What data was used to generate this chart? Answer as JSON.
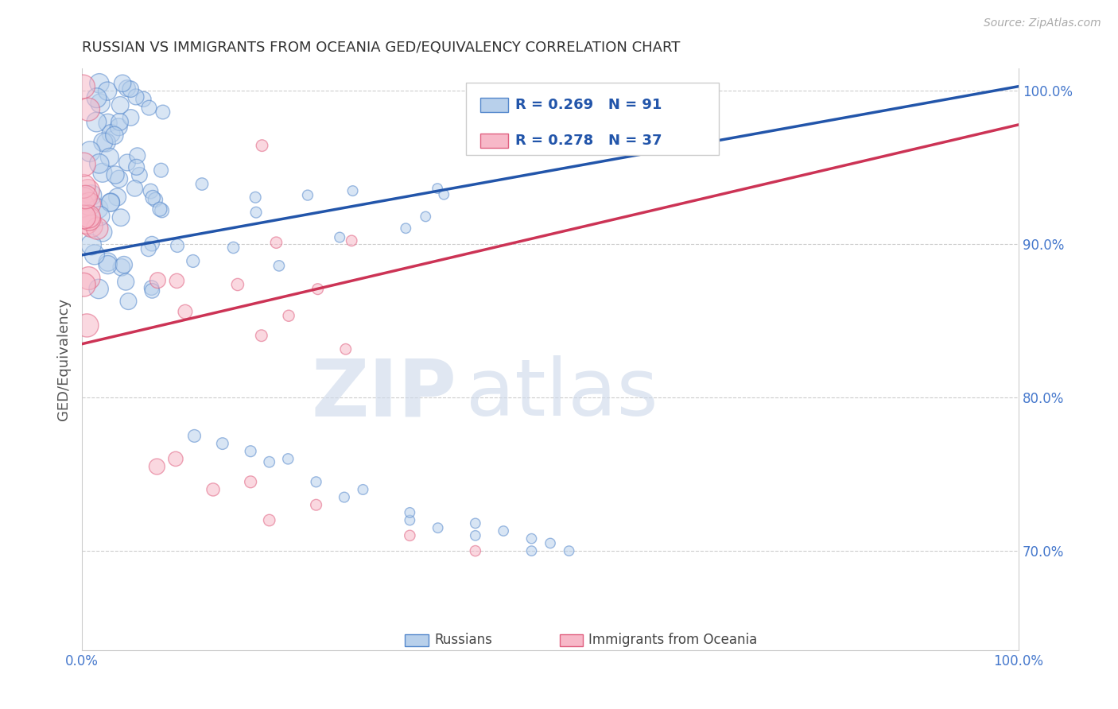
{
  "title": "RUSSIAN VS IMMIGRANTS FROM OCEANIA GED/EQUIVALENCY CORRELATION CHART",
  "source": "Source: ZipAtlas.com",
  "ylabel": "GED/Equivalency",
  "xlim": [
    0.0,
    1.0
  ],
  "ylim": [
    0.635,
    1.015
  ],
  "yticks": [
    0.7,
    0.8,
    0.9,
    1.0
  ],
  "ytick_labels": [
    "70.0%",
    "80.0%",
    "90.0%",
    "100.0%"
  ],
  "xticks": [
    0.0,
    1.0
  ],
  "xtick_labels": [
    "0.0%",
    "100.0%"
  ],
  "legend_blue_r": "R = 0.269",
  "legend_blue_n": "N = 91",
  "legend_pink_r": "R = 0.278",
  "legend_pink_n": "N = 37",
  "legend_label_blue": "Russians",
  "legend_label_pink": "Immigrants from Oceania",
  "blue_fill": "#b8d0eb",
  "pink_fill": "#f7b8c8",
  "blue_edge": "#5588cc",
  "pink_edge": "#e06080",
  "blue_line_color": "#2255aa",
  "pink_line_color": "#cc3355",
  "legend_text_color": "#2255aa",
  "grid_color": "#cccccc",
  "title_color": "#333333",
  "ylabel_color": "#555555",
  "tick_color": "#4477cc",
  "background_color": "#ffffff",
  "dot_alpha": 0.55,
  "blue_line_y0": 0.893,
  "blue_line_y1": 1.003,
  "pink_line_y0": 0.835,
  "pink_line_y1": 0.978
}
